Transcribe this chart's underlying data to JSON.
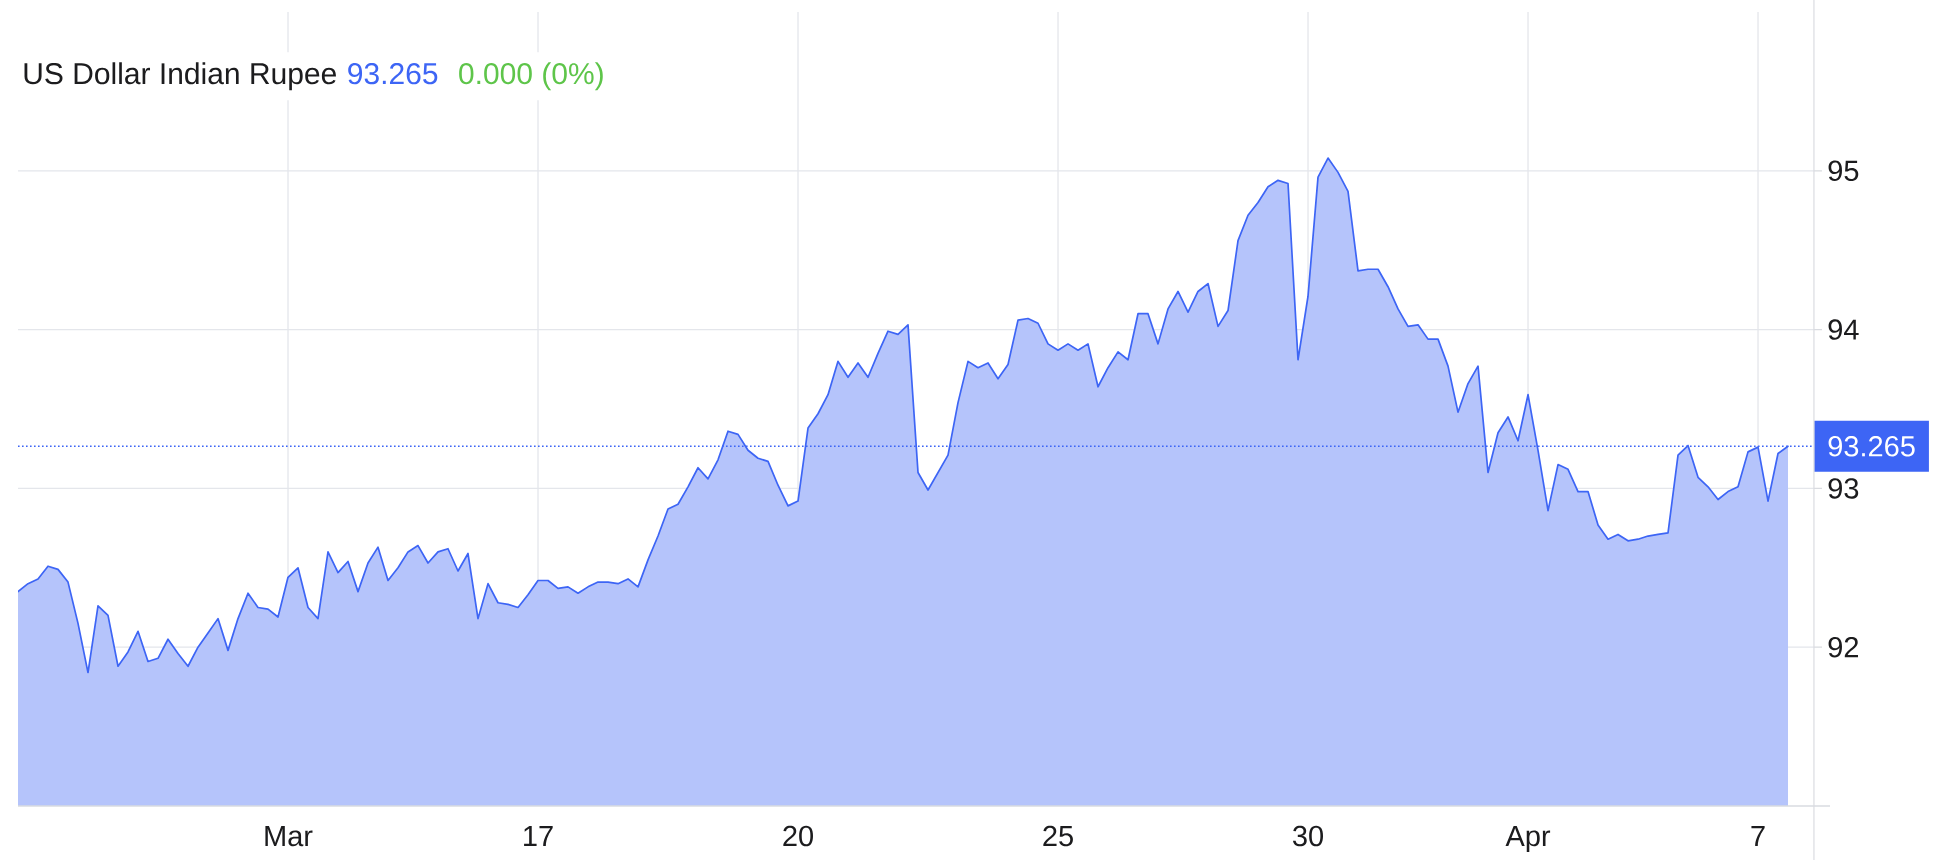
{
  "chart_data": {
    "type": "area",
    "title": "US Dollar Indian Rupee",
    "annotations": [
      "93.265",
      "0.000 (0%)"
    ],
    "categories": [
      null,
      null,
      null,
      null,
      null,
      null,
      null,
      null,
      null,
      null,
      null,
      null,
      null,
      null,
      null,
      null,
      null,
      null,
      null,
      null,
      null,
      null,
      null,
      null,
      null,
      null,
      null,
      "Mar",
      null,
      null,
      null,
      null,
      null,
      null,
      null,
      null,
      null,
      null,
      null,
      null,
      null,
      null,
      null,
      null,
      null,
      null,
      null,
      null,
      null,
      null,
      null,
      null,
      "17",
      null,
      null,
      null,
      null,
      null,
      null,
      null,
      null,
      null,
      null,
      null,
      null,
      null,
      null,
      null,
      null,
      null,
      null,
      null,
      null,
      null,
      null,
      null,
      null,
      null,
      "20",
      null,
      null,
      null,
      null,
      null,
      null,
      null,
      null,
      null,
      null,
      null,
      null,
      null,
      null,
      null,
      null,
      null,
      null,
      null,
      null,
      null,
      null,
      null,
      null,
      null,
      "25",
      null,
      null,
      null,
      null,
      null,
      null,
      null,
      null,
      null,
      null,
      null,
      null,
      null,
      null,
      null,
      null,
      null,
      null,
      null,
      null,
      null,
      null,
      null,
      null,
      "30",
      null,
      null,
      null,
      null,
      null,
      null,
      null,
      null,
      null,
      null,
      null,
      null,
      null,
      null,
      null,
      null,
      null,
      null,
      null,
      null,
      null,
      "Apr",
      null,
      null,
      null,
      null,
      null,
      null,
      null,
      null,
      null,
      null,
      null,
      null,
      null,
      null,
      null,
      null,
      null,
      null,
      null,
      null,
      null,
      null,
      "7",
      null,
      null,
      null
    ],
    "series": [
      {
        "color": "#3d65f5",
        "values": [
          92.35,
          92.4,
          92.43,
          92.51,
          92.49,
          92.41,
          92.15,
          91.84,
          92.26,
          92.2,
          91.88,
          91.97,
          92.1,
          91.91,
          91.93,
          92.05,
          91.96,
          91.88,
          92.0,
          92.09,
          92.18,
          91.98,
          92.18,
          92.34,
          92.25,
          92.24,
          92.19,
          92.44,
          92.5,
          92.25,
          92.18,
          92.6,
          92.47,
          92.54,
          92.35,
          92.53,
          92.63,
          92.42,
          92.5,
          92.6,
          92.64,
          92.53,
          92.6,
          92.62,
          92.48,
          92.59,
          92.18,
          92.4,
          92.28,
          92.27,
          92.25,
          92.33,
          92.42,
          92.42,
          92.37,
          92.38,
          92.34,
          92.38,
          92.41,
          92.41,
          92.4,
          92.43,
          92.38,
          92.55,
          92.7,
          92.87,
          92.9,
          93.01,
          93.13,
          93.06,
          93.18,
          93.36,
          93.34,
          93.24,
          93.19,
          93.17,
          93.02,
          92.89,
          92.92,
          93.38,
          93.47,
          93.59,
          93.8,
          93.7,
          93.79,
          93.7,
          93.85,
          93.99,
          93.97,
          94.03,
          93.1,
          92.99,
          93.1,
          93.21,
          93.54,
          93.8,
          93.76,
          93.79,
          93.69,
          93.78,
          94.06,
          94.07,
          94.04,
          93.91,
          93.87,
          93.91,
          93.87,
          93.91,
          93.64,
          93.76,
          93.86,
          93.81,
          94.1,
          94.1,
          93.91,
          94.13,
          94.24,
          94.11,
          94.24,
          94.29,
          94.02,
          94.12,
          94.56,
          94.72,
          94.8,
          94.9,
          94.94,
          94.92,
          93.81,
          94.21,
          94.96,
          95.08,
          94.99,
          94.87,
          94.37,
          94.38,
          94.38,
          94.27,
          94.13,
          94.02,
          94.03,
          93.94,
          93.94,
          93.77,
          93.48,
          93.66,
          93.77,
          93.1,
          93.35,
          93.45,
          93.3,
          93.59,
          93.24,
          92.86,
          93.15,
          93.12,
          92.98,
          92.98,
          92.77,
          92.68,
          92.71,
          92.67,
          92.68,
          92.7,
          92.71,
          92.72,
          93.21,
          93.27,
          93.07,
          93.01,
          92.93,
          92.98,
          93.01,
          93.23,
          93.26,
          92.92,
          93.22,
          93.265
        ]
      }
    ],
    "ylim": [
      91,
      96
    ],
    "yticks": [
      92,
      93,
      94,
      95
    ],
    "grid": true,
    "ref_lines": [
      {
        "axis": "y",
        "value": 93.265,
        "label": "93.265",
        "color": "#3d65f5",
        "line_style": "dotted"
      }
    ]
  }
}
